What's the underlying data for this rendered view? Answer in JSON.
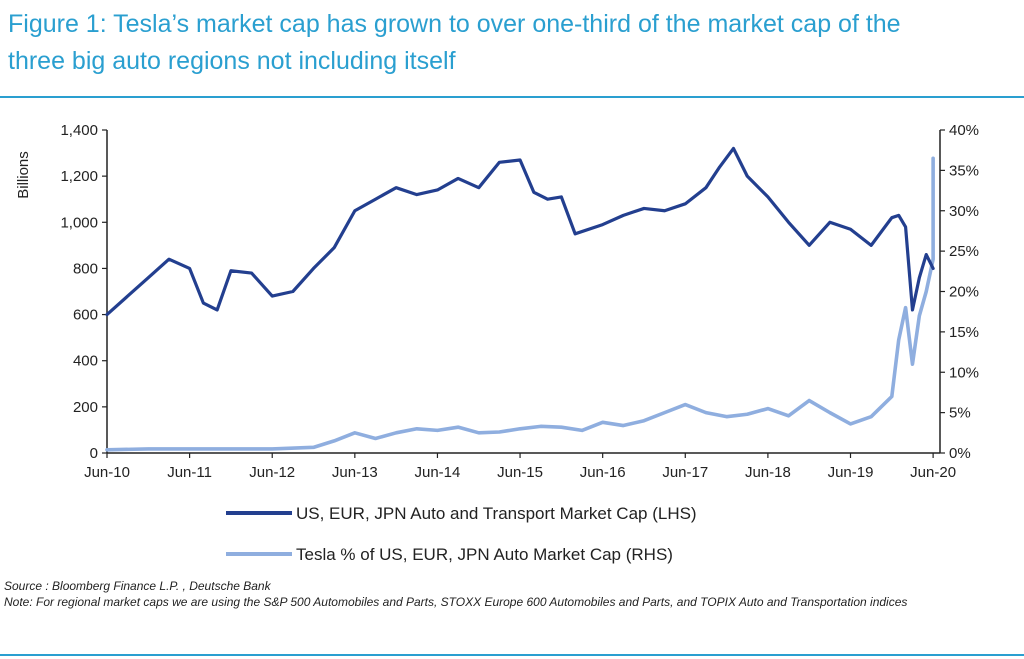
{
  "title": {
    "line1": "Figure 1: Tesla’s market cap has grown to over one-third of the market cap of the",
    "line2": "three big auto regions not including itself"
  },
  "footnotes": {
    "source": "Source : Bloomberg Finance L.P. , Deutsche Bank",
    "note": "Note: For regional market caps we are using the S&P 500 Automobiles and Parts, STOXX Europe 600 Automobiles and Parts, and TOPIX Auto and Transportation indices"
  },
  "colors": {
    "title": "#2a9fd0",
    "series_lhs": "#233f8f",
    "series_rhs": "#8faedf",
    "axis": "#222222"
  },
  "chart_data": {
    "type": "line",
    "xlabel": "",
    "ylabel": "Billions",
    "ylabel_right": "",
    "x_ticks": [
      "Jun-10",
      "Jun-11",
      "Jun-12",
      "Jun-13",
      "Jun-14",
      "Jun-15",
      "Jun-16",
      "Jun-17",
      "Jun-18",
      "Jun-19",
      "Jun-20"
    ],
    "x_range": [
      "2010-06",
      "2020-07"
    ],
    "ylim_left": [
      0,
      1400
    ],
    "yticks_left": [
      0,
      200,
      400,
      600,
      800,
      "1,000",
      "1,200",
      "1,400"
    ],
    "ylim_right": [
      0,
      40
    ],
    "yticks_right": [
      "0%",
      "5%",
      "10%",
      "15%",
      "20%",
      "25%",
      "30%",
      "35%",
      "40%"
    ],
    "legend_position": "bottom",
    "grid": false,
    "series": [
      {
        "name": "US, EUR, JPN Auto and Transport Market Cap (LHS)",
        "axis": "left",
        "x": [
          "2010-06",
          "2010-09",
          "2010-12",
          "2011-03",
          "2011-06",
          "2011-08",
          "2011-10",
          "2011-12",
          "2012-03",
          "2012-06",
          "2012-09",
          "2012-12",
          "2013-03",
          "2013-06",
          "2013-09",
          "2013-12",
          "2014-03",
          "2014-06",
          "2014-09",
          "2014-12",
          "2015-03",
          "2015-06",
          "2015-08",
          "2015-10",
          "2015-12",
          "2016-02",
          "2016-06",
          "2016-09",
          "2016-12",
          "2017-03",
          "2017-06",
          "2017-09",
          "2017-11",
          "2018-01",
          "2018-03",
          "2018-06",
          "2018-09",
          "2018-12",
          "2019-03",
          "2019-06",
          "2019-09",
          "2019-12",
          "2020-01",
          "2020-02",
          "2020-03",
          "2020-04",
          "2020-05",
          "2020-06"
        ],
        "values": [
          600,
          680,
          760,
          840,
          800,
          650,
          620,
          790,
          780,
          680,
          700,
          800,
          890,
          1050,
          1100,
          1150,
          1120,
          1140,
          1190,
          1150,
          1260,
          1270,
          1130,
          1100,
          1110,
          950,
          990,
          1030,
          1060,
          1050,
          1080,
          1150,
          1240,
          1320,
          1200,
          1110,
          1000,
          900,
          1000,
          970,
          900,
          1020,
          1030,
          980,
          620,
          760,
          860,
          800
        ]
      },
      {
        "name": "Tesla % of US, EUR, JPN Auto Market Cap (RHS)",
        "axis": "right",
        "x": [
          "2010-06",
          "2010-12",
          "2011-06",
          "2011-12",
          "2012-06",
          "2012-12",
          "2013-03",
          "2013-06",
          "2013-09",
          "2013-12",
          "2014-03",
          "2014-06",
          "2014-09",
          "2014-12",
          "2015-03",
          "2015-06",
          "2015-09",
          "2015-12",
          "2016-03",
          "2016-06",
          "2016-09",
          "2016-12",
          "2017-03",
          "2017-06",
          "2017-09",
          "2017-12",
          "2018-03",
          "2018-06",
          "2018-09",
          "2018-12",
          "2019-03",
          "2019-06",
          "2019-09",
          "2019-12",
          "2020-01",
          "2020-02",
          "2020-03",
          "2020-04",
          "2020-05",
          "2020-06",
          "2020-06"
        ],
        "values": [
          0.4,
          0.5,
          0.5,
          0.5,
          0.5,
          0.7,
          1.5,
          2.5,
          1.8,
          2.5,
          3.0,
          2.8,
          3.2,
          2.5,
          2.6,
          3.0,
          3.3,
          3.2,
          2.8,
          3.8,
          3.4,
          4.0,
          5.0,
          6.0,
          5.0,
          4.5,
          4.8,
          5.5,
          4.6,
          6.5,
          5.0,
          3.6,
          4.5,
          7.0,
          14.0,
          18.0,
          11.0,
          17.0,
          20.0,
          24.0,
          36.5
        ]
      }
    ]
  }
}
